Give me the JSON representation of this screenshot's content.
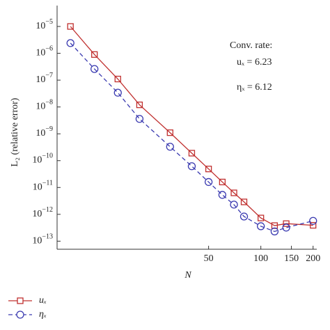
{
  "chart_data": {
    "type": "line",
    "xlabel": "N",
    "ylabel": "L₂ (relative error)",
    "x": [
      8,
      11,
      15,
      20,
      30,
      40,
      50,
      60,
      70,
      80,
      100,
      120,
      140,
      200
    ],
    "series": [
      {
        "name": "uₓ",
        "color": "#c0302f",
        "marker": "square",
        "dashed": false,
        "values": [
          1e-05,
          9e-07,
          1.1e-07,
          1.2e-08,
          1.1e-09,
          1.9e-10,
          4.9e-11,
          1.6e-11,
          6.3e-12,
          2.9e-12,
          7.3e-13,
          3.8e-13,
          4.5e-13,
          3.9e-13
        ]
      },
      {
        "name": "ηₓ",
        "color": "#3a3ab0",
        "marker": "circle",
        "dashed": true,
        "values": [
          2.4e-06,
          2.6e-07,
          3.4e-08,
          3.6e-09,
          3.3e-10,
          6.2e-11,
          1.6e-11,
          5.3e-12,
          2.3e-12,
          8.3e-13,
          3.6e-13,
          2.3e-13,
          3.2e-13,
          5.7e-13
        ]
      }
    ],
    "xlim": [
      6.7,
      210
    ],
    "ylim": [
      5e-14,
      6e-05
    ],
    "xlog": true,
    "ylog": true,
    "xticks": [
      50,
      100,
      150,
      200
    ],
    "yticks": [
      {
        "value": 1e-05,
        "label": "10",
        "exponent": "−5"
      },
      {
        "value": 1e-06,
        "label": "10",
        "exponent": "−6"
      },
      {
        "value": 1e-07,
        "label": "10",
        "exponent": "−7"
      },
      {
        "value": 1e-08,
        "label": "10",
        "exponent": "−8"
      },
      {
        "value": 1e-09,
        "label": "10",
        "exponent": "−9"
      },
      {
        "value": 1e-10,
        "label": "10",
        "exponent": "−10"
      },
      {
        "value": 1e-11,
        "label": "10",
        "exponent": "−11"
      },
      {
        "value": 1e-12,
        "label": "10",
        "exponent": "−12"
      },
      {
        "value": 1e-13,
        "label": "10",
        "exponent": "−13"
      }
    ],
    "annotations": [
      "Conv. rate:",
      "uₓ = 6.23",
      "ηₓ = 6.12"
    ]
  }
}
